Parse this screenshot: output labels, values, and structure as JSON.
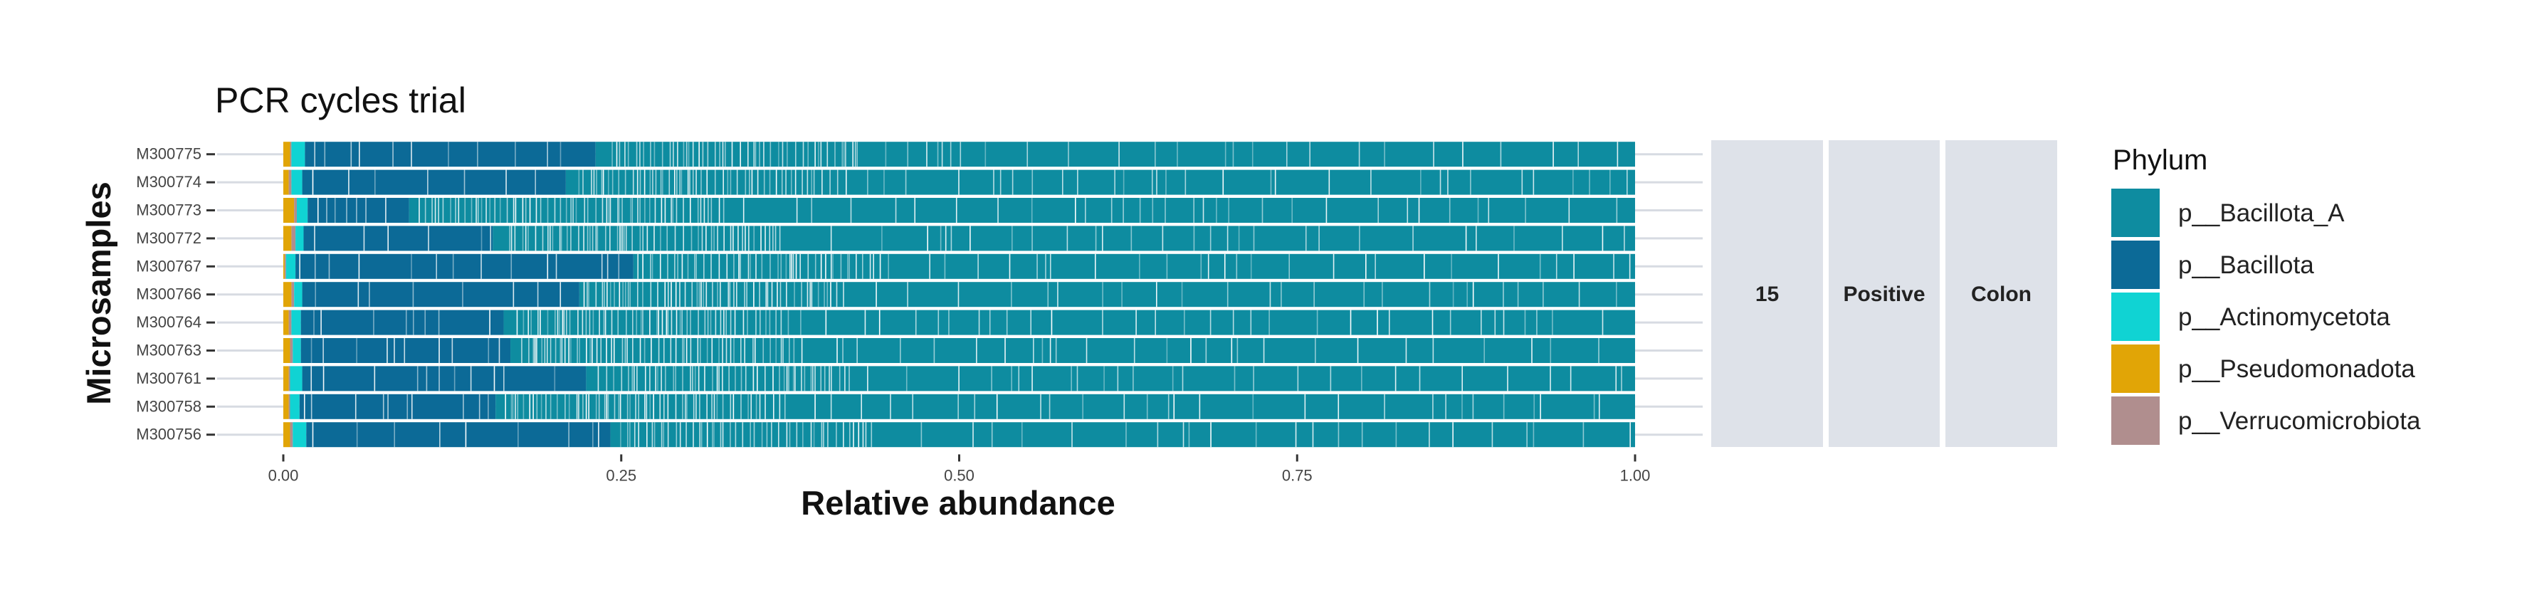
{
  "chart_data": {
    "type": "bar",
    "orientation": "horizontal",
    "stacked": true,
    "title": "PCR cycles trial",
    "xlabel": "Relative abundance",
    "ylabel": "Microsamples",
    "xlim": [
      0,
      1
    ],
    "x_ticks": [
      "0.00",
      "0.25",
      "0.50",
      "0.75",
      "1.00"
    ],
    "categories": [
      "M300775",
      "M300774",
      "M300773",
      "M300772",
      "M300767",
      "M300766",
      "M300764",
      "M300763",
      "M300761",
      "M300758",
      "M300756"
    ],
    "legend": {
      "title": "Phylum",
      "position": "right",
      "items": [
        {
          "name": "p__Bacillota_A",
          "color": "#0E8CA0"
        },
        {
          "name": "p__Bacillota",
          "color": "#0C6A97"
        },
        {
          "name": "p__Actinomycetota",
          "color": "#10D3D3"
        },
        {
          "name": "p__Pseudomonadota",
          "color": "#E1A506"
        },
        {
          "name": "p__Verrucomicrobiota",
          "color": "#B08E8E"
        }
      ]
    },
    "series": [
      {
        "name": "p__Pseudomonadota",
        "values": [
          0.005,
          0.004,
          0.008,
          0.006,
          0.001,
          0.006,
          0.004,
          0.005,
          0.004,
          0.004,
          0.005
        ]
      },
      {
        "name": "p__Verrucomicrobiota",
        "values": [
          0.001,
          0.002,
          0.002,
          0.003,
          0.001,
          0.002,
          0.002,
          0.002,
          0.001,
          0.001,
          0.002
        ]
      },
      {
        "name": "p__Actinomycetota",
        "values": [
          0.01,
          0.008,
          0.008,
          0.006,
          0.007,
          0.006,
          0.007,
          0.006,
          0.009,
          0.007,
          0.01
        ]
      },
      {
        "name": "p__Bacillota",
        "values": [
          0.215,
          0.195,
          0.075,
          0.14,
          0.25,
          0.205,
          0.15,
          0.155,
          0.21,
          0.145,
          0.225
        ]
      },
      {
        "name": "p__Bacillota_A",
        "values": [
          0.769,
          0.791,
          0.907,
          0.845,
          0.741,
          0.781,
          0.837,
          0.832,
          0.776,
          0.843,
          0.758
        ]
      }
    ],
    "facet_strips": [
      "15",
      "Positive",
      "Colon"
    ],
    "grid": true
  },
  "colors": {
    "strip_fill": "#DEE2E9",
    "grid": "#D7DBE2",
    "separator": "#FFFFFF"
  }
}
